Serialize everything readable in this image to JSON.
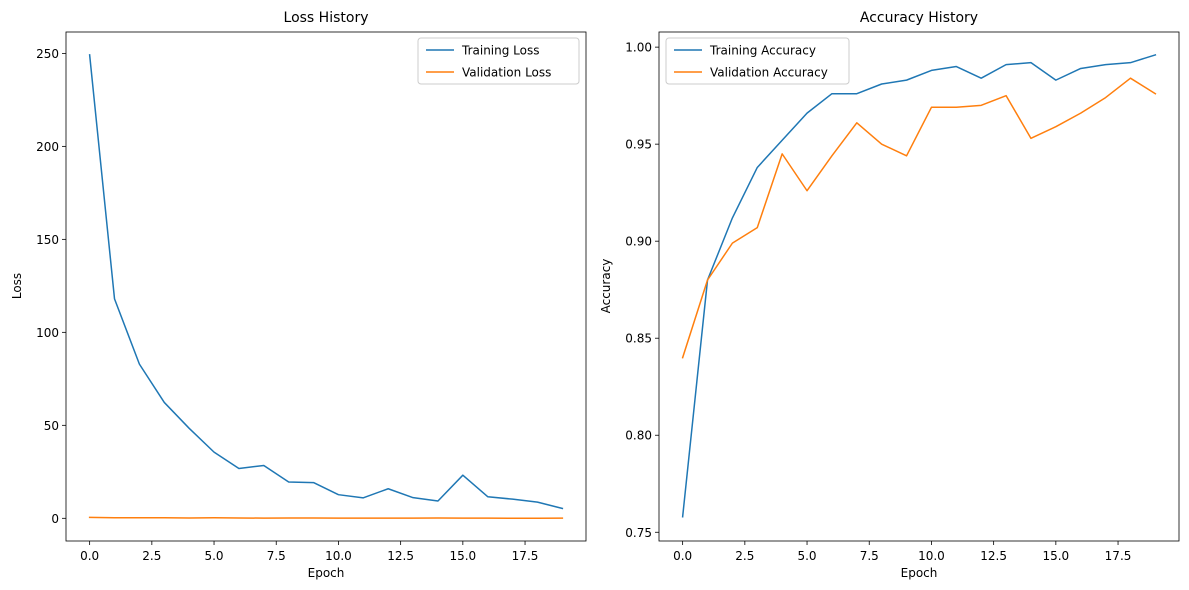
{
  "chart_data": [
    {
      "type": "line",
      "title": "Loss History",
      "xlabel": "Epoch",
      "ylabel": "Loss",
      "xlim": [
        -0.95,
        19.95
      ],
      "ylim": [
        -12.2,
        261.5
      ],
      "xticks": [
        0.0,
        2.5,
        5.0,
        7.5,
        10.0,
        12.5,
        15.0,
        17.5
      ],
      "xtick_labels": [
        "0.0",
        "2.5",
        "5.0",
        "7.5",
        "10.0",
        "12.5",
        "15.0",
        "17.5"
      ],
      "yticks": [
        0,
        50,
        100,
        150,
        200,
        250
      ],
      "ytick_labels": [
        "0",
        "50",
        "100",
        "150",
        "200",
        "250"
      ],
      "grid": false,
      "legend_position": "top-right",
      "x": [
        0,
        1,
        2,
        3,
        4,
        5,
        6,
        7,
        8,
        9,
        10,
        11,
        12,
        13,
        14,
        15,
        16,
        17,
        18,
        19
      ],
      "series": [
        {
          "name": "Training Loss",
          "color": "#1f77b4",
          "values": [
            249.2,
            118.0,
            82.9,
            62.3,
            48.4,
            35.6,
            26.8,
            28.4,
            19.5,
            19.2,
            12.7,
            11.0,
            15.9,
            11.1,
            9.3,
            23.2,
            11.6,
            10.3,
            8.7,
            5.3
          ]
        },
        {
          "name": "Validation Loss",
          "color": "#ff7f0e",
          "values": [
            0.5,
            0.3,
            0.3,
            0.3,
            0.2,
            0.3,
            0.2,
            0.1,
            0.2,
            0.2,
            0.1,
            0.1,
            0.1,
            0.1,
            0.2,
            0.1,
            0.1,
            0.05,
            0.05,
            0.1
          ]
        }
      ]
    },
    {
      "type": "line",
      "title": "Accuracy History",
      "xlabel": "Epoch",
      "ylabel": "Accuracy",
      "xlim": [
        -0.95,
        19.95
      ],
      "ylim": [
        0.7455,
        1.0078
      ],
      "xticks": [
        0.0,
        2.5,
        5.0,
        7.5,
        10.0,
        12.5,
        15.0,
        17.5
      ],
      "xtick_labels": [
        "0.0",
        "2.5",
        "5.0",
        "7.5",
        "10.0",
        "12.5",
        "15.0",
        "17.5"
      ],
      "yticks": [
        0.75,
        0.8,
        0.85,
        0.9,
        0.95,
        1.0
      ],
      "ytick_labels": [
        "0.75",
        "0.80",
        "0.85",
        "0.90",
        "0.95",
        "1.00"
      ],
      "grid": false,
      "legend_position": "top-left",
      "x": [
        0,
        1,
        2,
        3,
        4,
        5,
        6,
        7,
        8,
        9,
        10,
        11,
        12,
        13,
        14,
        15,
        16,
        17,
        18,
        19
      ],
      "series": [
        {
          "name": "Training Accuracy",
          "color": "#1f77b4",
          "values": [
            0.758,
            0.88,
            0.912,
            0.938,
            0.952,
            0.966,
            0.976,
            0.976,
            0.981,
            0.983,
            0.988,
            0.99,
            0.984,
            0.991,
            0.992,
            0.983,
            0.989,
            0.991,
            0.992,
            0.996
          ]
        },
        {
          "name": "Validation Accuracy",
          "color": "#ff7f0e",
          "values": [
            0.84,
            0.88,
            0.899,
            0.907,
            0.945,
            0.926,
            0.944,
            0.961,
            0.95,
            0.944,
            0.969,
            0.969,
            0.97,
            0.975,
            0.953,
            0.959,
            0.966,
            0.974,
            0.984,
            0.976
          ]
        }
      ]
    }
  ]
}
